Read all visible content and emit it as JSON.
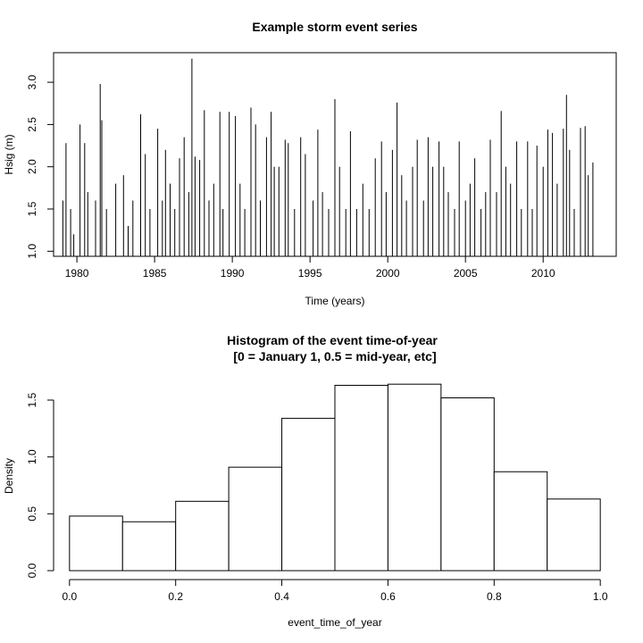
{
  "chart_data": [
    {
      "type": "line",
      "title": "Example storm event series",
      "xlabel": "Time (years)",
      "ylabel": "Hsig (m)",
      "xlim": [
        1978.5,
        2014.7
      ],
      "ylim": [
        0.94,
        3.35
      ],
      "xticks": [
        1980,
        1985,
        1990,
        1995,
        2000,
        2005,
        2010
      ],
      "yticks": [
        1.0,
        1.5,
        2.0,
        2.5,
        3.0
      ],
      "xtick_labels": [
        "1980",
        "1985",
        "1990",
        "1995",
        "2000",
        "2005",
        "2010"
      ],
      "ytick_labels": [
        "1.0",
        "1.5",
        "2.0",
        "2.5",
        "3.0"
      ],
      "baseline": 0.94,
      "series": [
        {
          "style": "vertical-spikes",
          "x": [
            1979.1,
            1979.3,
            1979.6,
            1979.8,
            1980.2,
            1980.5,
            1980.7,
            1981.2,
            1981.5,
            1981.6,
            1981.9,
            1982.5,
            1983.0,
            1983.3,
            1983.6,
            1984.1,
            1984.4,
            1984.7,
            1985.2,
            1985.5,
            1985.7,
            1986.0,
            1986.3,
            1986.6,
            1986.9,
            1987.2,
            1987.4,
            1987.6,
            1987.9,
            1988.2,
            1988.5,
            1988.8,
            1989.2,
            1989.4,
            1989.8,
            1990.2,
            1990.5,
            1990.8,
            1991.2,
            1991.5,
            1991.8,
            1992.2,
            1992.5,
            1992.7,
            1993.0,
            1993.4,
            1993.6,
            1994.0,
            1994.4,
            1994.7,
            1995.2,
            1995.5,
            1995.8,
            1996.2,
            1996.6,
            1996.9,
            1997.3,
            1997.6,
            1998.0,
            1998.4,
            1998.8,
            1999.2,
            1999.6,
            1999.9,
            2000.3,
            2000.6,
            2000.9,
            2001.2,
            2001.6,
            2001.9,
            2002.3,
            2002.6,
            2002.9,
            2003.3,
            2003.6,
            2003.9,
            2004.3,
            2004.6,
            2005.0,
            2005.3,
            2005.6,
            2006.0,
            2006.3,
            2006.6,
            2007.0,
            2007.3,
            2007.6,
            2007.9,
            2008.3,
            2008.6,
            2009.0,
            2009.3,
            2009.6,
            2010.0,
            2010.3,
            2010.6,
            2010.9,
            2011.3,
            2011.5,
            2011.7,
            2012.0,
            2012.4,
            2012.7,
            2012.9,
            2013.2
          ],
          "y": [
            1.6,
            2.28,
            1.5,
            1.2,
            2.5,
            2.28,
            1.7,
            1.6,
            2.98,
            2.55,
            1.5,
            1.8,
            1.9,
            1.3,
            1.6,
            2.62,
            2.15,
            1.5,
            2.45,
            1.6,
            2.2,
            1.8,
            1.5,
            2.1,
            2.35,
            1.7,
            3.28,
            2.12,
            2.08,
            2.67,
            1.6,
            1.8,
            2.65,
            1.5,
            2.65,
            2.6,
            1.8,
            1.5,
            2.7,
            2.5,
            1.6,
            2.35,
            2.65,
            2.0,
            2.0,
            2.32,
            2.28,
            1.5,
            2.35,
            2.15,
            1.6,
            2.44,
            1.7,
            1.5,
            2.8,
            2.0,
            1.5,
            2.42,
            1.5,
            1.8,
            1.5,
            2.1,
            2.3,
            1.7,
            2.2,
            2.76,
            1.9,
            1.6,
            2.0,
            2.32,
            1.6,
            2.35,
            2.0,
            2.3,
            2.0,
            1.7,
            1.5,
            2.3,
            1.6,
            1.8,
            2.1,
            1.5,
            1.7,
            2.32,
            1.7,
            2.66,
            2.0,
            1.8,
            2.3,
            1.5,
            2.3,
            1.5,
            2.25,
            2.0,
            2.44,
            2.4,
            1.8,
            2.45,
            2.85,
            2.2,
            1.5,
            2.46,
            2.48,
            1.9,
            2.05
          ]
        }
      ]
    },
    {
      "type": "bar",
      "title": "Histogram of the event time-of-year",
      "subtitle": "[0 = January 1, 0.5 = mid-year, etc]",
      "xlabel": "event_time_of_year",
      "ylabel": "Density",
      "xlim": [
        -0.03,
        1.03
      ],
      "ylim": [
        0,
        1.72
      ],
      "xticks": [
        0.0,
        0.2,
        0.4,
        0.6,
        0.8,
        1.0
      ],
      "yticks": [
        0.0,
        0.5,
        1.0,
        1.5
      ],
      "xtick_labels": [
        "0.0",
        "0.2",
        "0.4",
        "0.6",
        "0.8",
        "1.0"
      ],
      "ytick_labels": [
        "0.0",
        "0.5",
        "1.0",
        "1.5"
      ],
      "bin_edges": [
        0.0,
        0.1,
        0.2,
        0.3,
        0.4,
        0.5,
        0.6,
        0.7,
        0.8,
        0.9,
        1.0
      ],
      "values": [
        0.48,
        0.43,
        0.61,
        0.91,
        1.34,
        1.63,
        1.64,
        1.52,
        0.87,
        0.63
      ]
    }
  ]
}
